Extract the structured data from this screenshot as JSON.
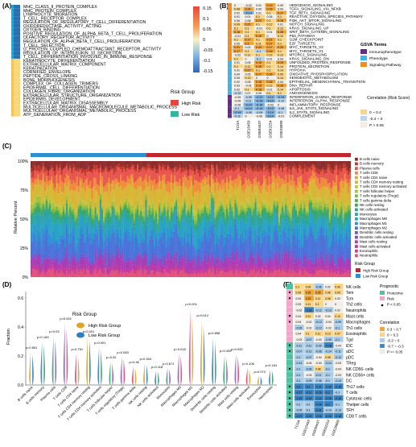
{
  "panels": {
    "A": "(A)",
    "B": "(B)",
    "C": "(C)",
    "D": "(D)",
    "E": "(E)"
  },
  "panelA": {
    "rows": [
      "MHC_CLASS_II_PROTEIN_COMPLEX",
      "MHC_PROTEIN_COMPLEX",
      "LYMPHOCYTE_MIGRATION",
      "T_CELL_RECEPTOR_COMPLEX",
      "REGULATION_OF_REGULATORY_T_CELL_DIFFERENTIATION",
      "OXIDOREDUCTASE_ACTIVITY_ACTING",
      "OXYGEN_BINDING",
      "POSITIVE_REGULATION_OF_ALPHA_BETA_T_CELL_PROLIFERATION",
      "OLFACTORY_RECEPTOR_ACTIVITY",
      "REGULATION_OF_ALPHA_BETA_T_CELL_PROLIFERATION",
      "T_CELL_SELECTION",
      "G_PROTEIN_COUPLED_CHEMOATTRACTANT_RECEPTOR_ACTIVITY",
      "REGULATION_OF_INTERLEUKIN_10_SECRETION",
      "T_CELL_DIFFERENTIATION_INVOLVED_IN_IMMUNE_RESPONSE",
      "KERATINOCYTE_DIFFERENTIATION",
      "EXTRACELLULAR_MATRIX_COMPONENT",
      "KERATINIZATION",
      "CORNIFIED_ENVELOPE",
      "PEPTIDE_CROSS_LINKING",
      "BONE_MORPHOGENESIS",
      "COMPLEX_OF_COLLAGEN_TRIMERS",
      "EPIDERMAL_CELL_DIFFERENTIATION",
      "COLLAGEN_FIBRIL_ORGANIZATION",
      "EXTRACELLULAR_STRUCTURE_ORGANIZATION",
      "EPIDERMIS_DEVELOPMENT",
      "EXTRACELLULAR_MATRIX_DISASSEMBLY",
      "MULTICELLULAR_ORGANISMAL_MACROMOLECULE_METABOLIC_PROCESS",
      "MULTICELLULAR_ORGANISMAL_METABOLIC_PROCESS",
      "ATP_GENERATION_FROM_ADP"
    ],
    "colorbar": [
      "0.15",
      "0.1",
      "0.05",
      "0",
      "-0.05",
      "-0.1",
      "-0.15"
    ],
    "legend_title": "Risk Group",
    "legend": [
      "High Risk",
      "Low Risk"
    ]
  },
  "panelB": {
    "rows": [
      "HEDGEHOG_SIGNALING",
      "TGFA_SIGNALING_VIA_NFKB",
      "TGF_BETA_SIGNALING",
      "REACTIVE_OXYGEN_SPECIES_PATHWAY",
      "PI3K_AKT_MTOR_SIGNALING",
      "NOTCH_SIGNALING",
      "KRAS_SIGNALING_UP",
      "WNT_BETA_CATENIN_SIGNALING",
      "P53_PATHWAY",
      "G2M_CHECKPOINT",
      "E2F_TARGETS",
      "MYC_TARGETS_V2",
      "MYC_TARGETS_V1",
      "MTORC1_SIGNALING",
      "KRAS_SIGNALING_DN",
      "UNFOLDED_PROTEIN_RESPONSE",
      "PROTEIN_SECRETION",
      "HYPOXIA",
      "OXIDATIVE_PHOSPHORYLATION",
      "XENOBIOTIC_METABOLISM",
      "EPITHELIAL_MESENCHYMAL_TRANSITION",
      "DNA_REPAIR",
      "APOPTOSIS",
      "ANGIOGENESIS",
      "INTERFERON_GAMMA_RESPONSE",
      "INTERFERON_ALPHA_RESPONSE",
      "INFLAMMATORY_RESPONSE",
      "IL6_JAK_STAT3_SIGNALING",
      "IL2_STAT5_SIGNALING",
      "COMPLEMENT"
    ],
    "cols": [
      "TCGA",
      "GSE15459",
      "GSE84437",
      "GSE62254",
      "GSE26899"
    ],
    "values": [
      [
        "0",
        "-0.02",
        "0.01",
        "0.19",
        "0.05"
      ],
      [
        "0.08",
        "0.24",
        "0.05",
        "0.16",
        "0.04"
      ],
      [
        "0.02",
        "-0.14",
        "0.01",
        "0.1",
        "0.17"
      ],
      [
        "0.01",
        "0.01",
        "0.1",
        "0.06",
        "0.1"
      ],
      [
        "0.06",
        "0.06",
        "0.21",
        "0.1",
        "0.16"
      ],
      [
        "0.09",
        "0.21",
        "0.1",
        "0.12",
        "0.01"
      ],
      [
        "0.1",
        "0.1",
        "-0.01",
        "0.1",
        "0.12"
      ],
      [
        "0.16",
        "0.1",
        "0.1",
        "0.01",
        "0.26"
      ],
      [
        "-0.01",
        "0.1",
        "0.15",
        "0",
        "0.12"
      ],
      [
        "0.1",
        "0.17",
        "0.1",
        "0.21",
        "0.1"
      ],
      [
        "0.05",
        "0.3",
        "0.11",
        "0.17",
        "0.1"
      ],
      [
        "0.21",
        "0.02",
        "0.24",
        "0.17",
        "0.25"
      ],
      [
        "0.17",
        "0.1",
        "-0.1",
        "0.16",
        "0.1"
      ],
      [
        "-0.02",
        "0.11",
        "0.1",
        "0.12",
        "0.12"
      ],
      [
        "0.1",
        "0",
        "-0.1",
        "0.01",
        "0.04"
      ],
      [
        "0.01",
        "0.05",
        "0.16",
        "0.1",
        "0.19"
      ],
      [
        "0.1",
        "0.11",
        "0.25",
        "0.1",
        "0.14"
      ],
      [
        "0.01",
        "0.17",
        "0.1",
        "0.1",
        "0.14"
      ],
      [
        "0.04",
        "0.05",
        "0.17",
        "0.26",
        "0.09"
      ],
      [
        "0.05",
        "0.12",
        "0",
        "0",
        "0.14"
      ],
      [
        "0.02",
        "0.06",
        "0.16",
        "0.26",
        "0.04"
      ],
      [
        "0.03",
        "-0.01",
        "0.15",
        "0.12",
        "0.16"
      ],
      [
        "0.02",
        "0.1",
        "0.18",
        "0.01",
        "0.14"
      ],
      [
        "-0.12",
        "0.07",
        "0.05",
        "0.1",
        "0.1"
      ],
      [
        "-0.05",
        "-0.09",
        "-0.21",
        "-0.14",
        "-0.13"
      ],
      [
        "-0.06",
        "-0.11",
        "-0.19",
        "-0.14",
        "-0.12"
      ],
      [
        "-0.06",
        "-0.14",
        "-0.16",
        "-0.03",
        "0"
      ],
      [
        "-0.1",
        "-0.14",
        "-0.14",
        "-0.13",
        "-0.08"
      ],
      [
        "-0.14",
        "-0.09",
        "-0.09",
        "-0.14",
        "-0.1"
      ],
      [
        "-0.11",
        "0",
        "-0.06",
        "-0.14",
        "-0.01"
      ]
    ],
    "gsva_title": "GSVA Terms",
    "gsva_terms": [
      {
        "label": "Immunophenotype",
        "color": "#6a2a8c"
      },
      {
        "label": "Phenotype",
        "color": "#3db5e6"
      },
      {
        "label": "Signaling Pathway",
        "color": "#f28c1e"
      }
    ],
    "corr_title": "Correlation\n(Risk Score)",
    "corr_labels": [
      "0 ~ 0.4",
      "-0.4 ~ 0",
      "P > 0.05"
    ]
  },
  "panelC": {
    "ylabel": "Relative Percent",
    "yticks": [
      "100%",
      "75%",
      "50%",
      "25%",
      "0%"
    ],
    "cells": [
      {
        "label": "B cells naive",
        "color": "#8c2d2d"
      },
      {
        "label": "B cells memory",
        "color": "#c0392b"
      },
      {
        "label": "Plasma cells",
        "color": "#e8554e"
      },
      {
        "label": "T cells CD8",
        "color": "#f08a3c"
      },
      {
        "label": "T cells CD4 naive",
        "color": "#e8a23a"
      },
      {
        "label": "T cells CD4 memory resting",
        "color": "#d9b536"
      },
      {
        "label": "T cells CD4 memory activated",
        "color": "#c8c43b"
      },
      {
        "label": "T cells follicular helper",
        "color": "#a6c140"
      },
      {
        "label": "T cells regulatory (Tregs)",
        "color": "#7bb845"
      },
      {
        "label": "T cells gamma delta",
        "color": "#4fae4d"
      },
      {
        "label": "NK cells resting",
        "color": "#3aa766"
      },
      {
        "label": "NK cells activated",
        "color": "#2fa58a"
      },
      {
        "label": "Monocytes",
        "color": "#2aa6a8"
      },
      {
        "label": "Macrophages M0",
        "color": "#2aa2c4"
      },
      {
        "label": "Macrophages M1",
        "color": "#2f8fd6"
      },
      {
        "label": "Macrophages M2",
        "color": "#4a72d9"
      },
      {
        "label": "Dendritic cells resting",
        "color": "#6a5ad3"
      },
      {
        "label": "Dendritic cells activated",
        "color": "#8a4ac7"
      },
      {
        "label": "Mast cells resting",
        "color": "#a83db6"
      },
      {
        "label": "Mast cells activated",
        "color": "#c23a9f"
      },
      {
        "label": "Eosinophils",
        "color": "#d43f86"
      },
      {
        "label": "Neutrophils",
        "color": "#e0527a"
      }
    ],
    "legend_title": "Risk Group",
    "legend": [
      {
        "label": "High Risk Group",
        "color": "#c2262e"
      },
      {
        "label": "Low Risk Group",
        "color": "#2d8fce"
      }
    ]
  },
  "panelD": {
    "ylabel": "Fraction",
    "yticks": [
      "0.6",
      "0.4",
      "0.2",
      "0.0"
    ],
    "legend_title": "Risk Group",
    "legend": [
      {
        "label": "High Risk Group",
        "color": "#e0a32a"
      },
      {
        "label": "Low Risk Group",
        "color": "#2f7fc0"
      }
    ],
    "groups": [
      {
        "label": "B cells naive",
        "p": "p=0.651",
        "h": 0.42
      },
      {
        "label": "B cells memory",
        "p": "p=0.169",
        "h": 0.55
      },
      {
        "label": "Plasma cells",
        "p": "p=0.03",
        "h": 0.62
      },
      {
        "label": "T cells CD8",
        "p": "p<0.001",
        "h": 0.78
      },
      {
        "label": "T cells CD4 naive",
        "p": "p=0.751",
        "h": 0.4
      },
      {
        "label": "T cells CD4 memory resting",
        "p": "p<0.001",
        "h": 0.62
      },
      {
        "label": "T cells CD4 memory activated",
        "p": "p<0.001",
        "h": 0.48
      },
      {
        "label": "T cells follicular helper",
        "p": "p=0.92",
        "h": 0.3
      },
      {
        "label": "T cells regulatory (Tregs)",
        "p": "p=0.083",
        "h": 0.36
      },
      {
        "label": "T cells gamma delta",
        "p": "p=0.46",
        "h": 0.24
      },
      {
        "label": "NK cells resting",
        "p": "p=0.304",
        "h": 0.28
      },
      {
        "label": "NK cells activated",
        "p": "p=0.118",
        "h": 0.18
      },
      {
        "label": "Monocytes",
        "p": "p=0.671",
        "h": 0.22
      },
      {
        "label": "Macrophages M0",
        "p": "p=0.018",
        "h": 0.4
      },
      {
        "label": "Macrophages M1",
        "p": "p<0.001",
        "h": 0.96
      },
      {
        "label": "Macrophages M2",
        "p": "p=0.612",
        "h": 0.82
      },
      {
        "label": "Dendritic cells resting",
        "p": "p=0.858",
        "h": 0.6
      },
      {
        "label": "Dendritic cells activated",
        "p": "p=0.439",
        "h": 0.38
      },
      {
        "label": "Mast cells resting",
        "p": "p=0.032",
        "h": 0.4
      },
      {
        "label": "Mast cells activated",
        "p": "p=0.106",
        "h": 0.22
      },
      {
        "label": "Eosinophils",
        "p": "p=0.072",
        "h": 0.12
      },
      {
        "label": "Neutrophils",
        "p": "p=0.181",
        "h": 0.2
      }
    ]
  },
  "panelE": {
    "rows": [
      "NK cells",
      "Tem",
      "Tcm",
      "Th2 cells",
      "Neutrophils",
      "Mast cells",
      "Macrophages",
      "Th1 cells",
      "Eosinophils",
      "Tgd",
      "iDC",
      "aDC",
      "pDC",
      "TReg",
      "NK CD56- cells",
      "NK CD56+ cells",
      "DC",
      "Th17 cells",
      "T cells",
      "Cytotoxic cells",
      "Thelper cells",
      "TFH",
      "CD8 T cells"
    ],
    "cols": [
      "TCGA",
      "GSE15459",
      "GSE84437",
      "GSE62254",
      "GSE26899"
    ],
    "values": [
      [
        "0.1",
        "0.06",
        "-0.06",
        "0.02",
        "0.06"
      ],
      [
        "0.05",
        "0.25",
        "0.25",
        "0.08",
        "0.05"
      ],
      [
        "0.04",
        "0.25",
        "0.11",
        "0.08",
        "0.02"
      ],
      [
        "0.03",
        "0.11",
        "0.1",
        "0",
        "0"
      ],
      [
        "-0.02",
        "-0.18",
        "-0.12",
        "-0.13",
        "0.02"
      ],
      [
        "0.04",
        "0.11",
        "0.02",
        "0.04",
        "0.12"
      ],
      [
        "0.04",
        "-0.02",
        "-0.13",
        "-0.04",
        "-0.09"
      ],
      [
        "-0.09",
        "-0.02",
        "-0.12",
        "-0.02",
        "-0.1"
      ],
      [
        "0.04",
        "0.1",
        "0.11",
        "0.13",
        "0.07"
      ],
      [
        "-0.03",
        "-0.07",
        "-0.03",
        "-0.09",
        "-0.1"
      ],
      [
        "-0.11",
        "-0.11",
        "-0.09",
        "-0.18",
        "-0.04"
      ],
      [
        "-0.07",
        "-0.12",
        "-0.06",
        "-0.14",
        "-0.11"
      ],
      [
        "-0.1",
        "-0.07",
        "-0.04",
        "0.08",
        "-0.12"
      ],
      [
        "-0.14",
        "-0.04",
        "-0.04",
        "-0.14",
        "-0.03"
      ],
      [
        "-0.1",
        "-0.06",
        "0.08",
        "-0.1",
        "-0.04"
      ],
      [
        "-0.1",
        "-0.03",
        "-0.11",
        "-0.1",
        "-0.03"
      ],
      [
        "-0.1",
        "-0.09",
        "-0.06",
        "-0.1",
        "-0.14"
      ],
      [
        "-0.2",
        "-0.2",
        "-0.21",
        "-0.28",
        "-0.18"
      ],
      [
        "-0.27",
        "-0.21",
        "-0.26",
        "-0.2",
        "-0.1"
      ],
      [
        "-0.15",
        "-0.18",
        "-0.24",
        "-0.26",
        "-0.16"
      ],
      [
        "-0.1",
        "-0.1",
        "-0.26",
        "-0.2",
        "-0.1"
      ],
      [
        "-0.09",
        "-0.1",
        "-0.21",
        "-0.14",
        "-0.13"
      ],
      [
        "-0.17",
        "-0.23",
        "-0.26",
        "-0.26",
        "-0.18"
      ]
    ],
    "legend_prog_title": "Prognostic",
    "legend_prog": [
      {
        "label": "Protective",
        "color": "#4fc3a1"
      },
      {
        "label": "Risk",
        "color": "#f3a7c8"
      },
      {
        "label": "P < 0.05",
        "color": "#000000"
      }
    ],
    "legend_corr_title": "Correlation",
    "legend_corr": [
      "0.3 ~ 0.7",
      "0 ~ 0.3",
      "-0.3 ~ 0",
      "-0.7 ~ -0.3",
      "P >= 0.05"
    ]
  }
}
